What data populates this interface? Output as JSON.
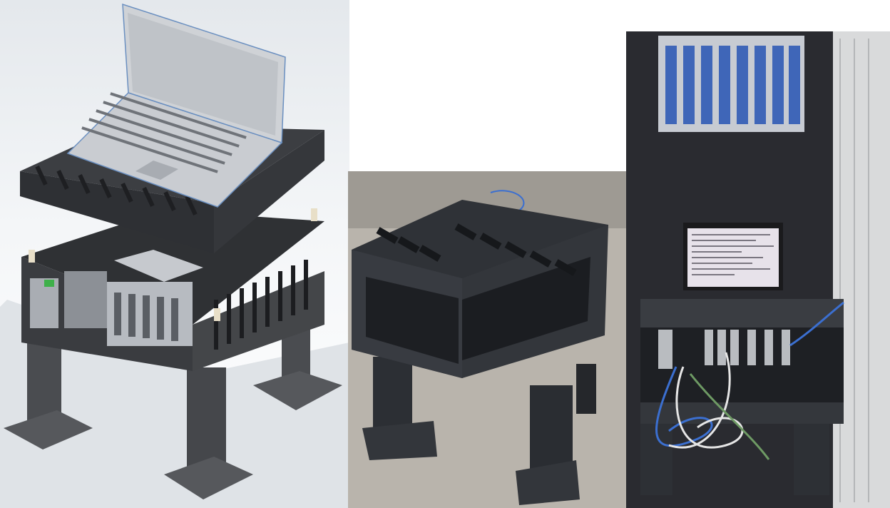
{
  "figure": {
    "panels": [
      {
        "kind": "cad-render"
      },
      {
        "kind": "photo"
      },
      {
        "kind": "photo"
      }
    ]
  },
  "colors": {
    "cad_background": "#eef1f4",
    "cad_body": "#3c3e42",
    "cad_laptop": "#c9ccd1",
    "print_plastic": "#2f3237",
    "floor": "#b9b4ac",
    "cabinet_interior": "#2a2b30",
    "network_module": "#3f66b8",
    "cable_blue": "#3b6fd0",
    "cable_white": "#e6e6e6",
    "cable_green": "#6e9a64"
  },
  "icons": [
    "laptop-icon",
    "io-module-icon",
    "network-switch-icon",
    "cable-icon",
    "screen-icon"
  ]
}
